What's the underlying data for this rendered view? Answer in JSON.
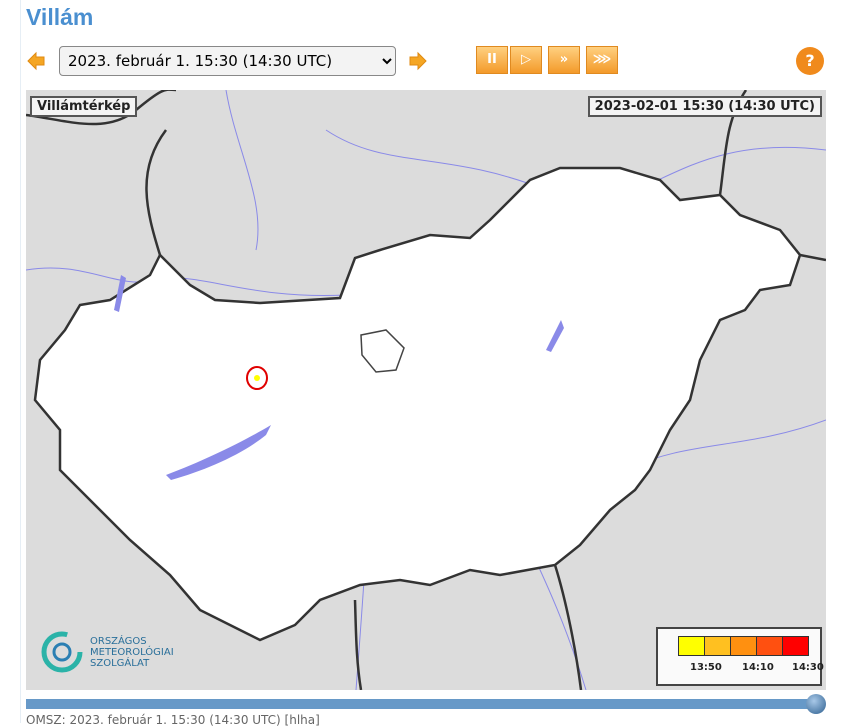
{
  "title": "Villám",
  "controls": {
    "selected_time": "2023. február 1. 15:30 (14:30  UTC)",
    "prev_icon": "arrow-left-icon",
    "next_icon": "arrow-right-icon",
    "buttons": [
      {
        "name": "pause",
        "glyph": "II"
      },
      {
        "name": "play",
        "glyph": "▷"
      },
      {
        "name": "fast",
        "glyph": "»"
      },
      {
        "name": "faster",
        "glyph": "⋙"
      }
    ],
    "help": "?"
  },
  "map": {
    "label": "Villámtérkép",
    "timestamp": "2023-02-01 15:30 (14:30 UTC)",
    "logo": {
      "line1": "ORSZÁGOS",
      "line2": "METEOROLÓGIAI",
      "line3": "SZOLGÁLAT"
    },
    "legend": {
      "colors": [
        "#ffff00",
        "#ffc020",
        "#ff9010",
        "#ff5010",
        "#ff0000"
      ],
      "labels": [
        "13:50",
        "14:10",
        "14:30"
      ]
    },
    "strike_color": "#e00000"
  },
  "timeline": {
    "progress": 1.0
  },
  "footer": "OMSZ: 2023. február 1. 15:30 (14:30  UTC)  [hlha]"
}
